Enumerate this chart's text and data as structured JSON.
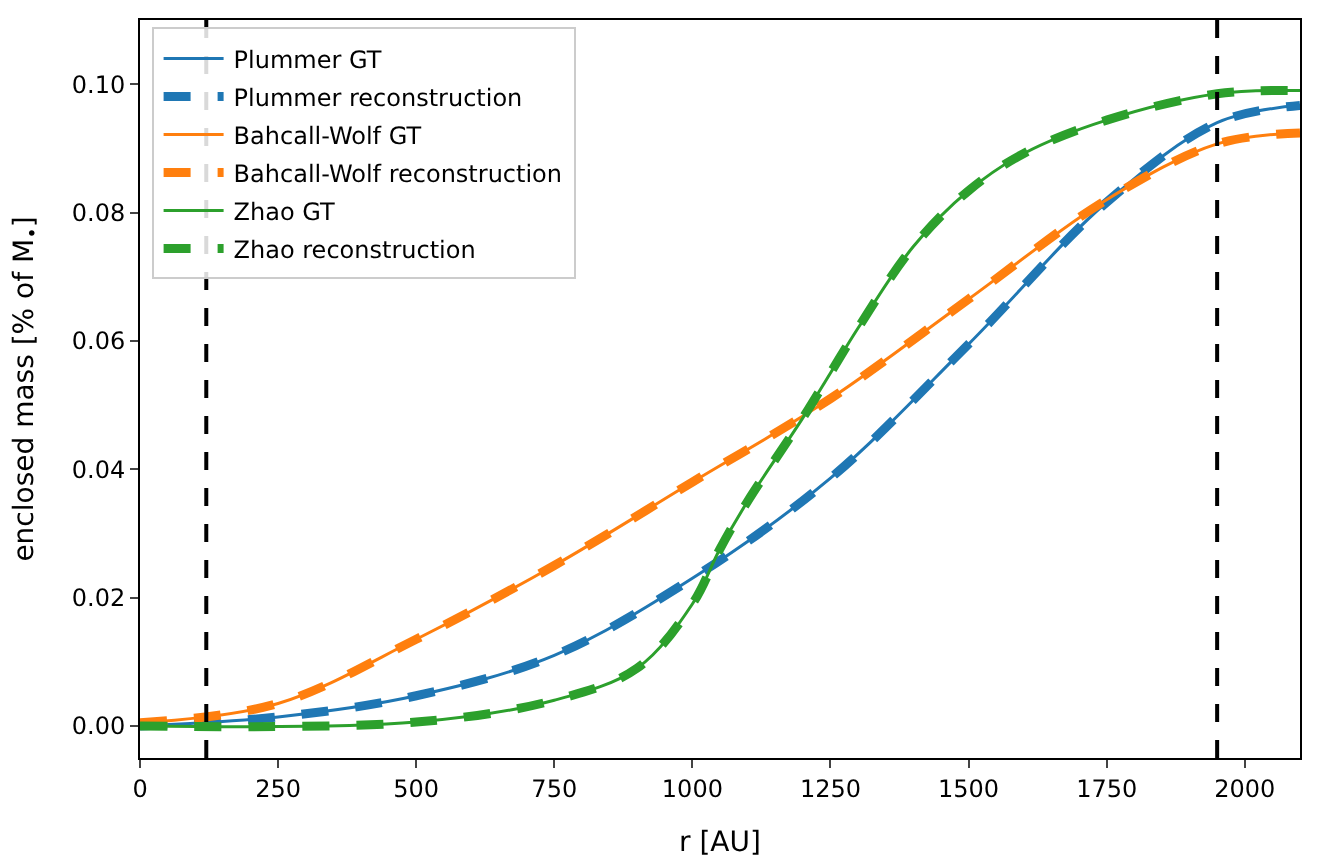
{
  "chart_data": {
    "type": "line",
    "xlabel": "r [AU]",
    "ylabel": "enclosed mass [% of M$_{•}$]",
    "xlim": [
      0,
      2100
    ],
    "ylim": [
      -0.005,
      0.11
    ],
    "xticks": [
      0,
      250,
      500,
      750,
      1000,
      1250,
      1500,
      1750,
      2000
    ],
    "yticks": [
      {
        "value": 0,
        "label": "0.00"
      },
      {
        "value": 0.02,
        "label": "0.02"
      },
      {
        "value": 0.04,
        "label": "0.04"
      },
      {
        "value": 0.06,
        "label": "0.06"
      },
      {
        "value": 0.08,
        "label": "0.08"
      },
      {
        "value": 0.1,
        "label": "0.10"
      }
    ],
    "grid": false,
    "legend": "top left",
    "marker": "none",
    "series": [
      {
        "name": "Plummer GT",
        "color": "#1f77b4",
        "line_style": "solid",
        "x": [
          0,
          250,
          500,
          750,
          1000,
          1250,
          1500,
          1750,
          1950,
          2100
        ],
        "values": [
          0,
          0.0014,
          0.0047,
          0.011,
          0.023,
          0.0386,
          0.0595,
          0.0816,
          0.094,
          0.0967
        ]
      },
      {
        "name": "Plummer reconstruction",
        "color": "#1f77b4",
        "line_style": "dashed",
        "x": [
          0,
          250,
          500,
          750,
          1000,
          1250,
          1500,
          1750,
          1950,
          2100
        ],
        "values": [
          0,
          0.0014,
          0.0047,
          0.011,
          0.023,
          0.0386,
          0.0595,
          0.0816,
          0.094,
          0.0967
        ]
      },
      {
        "name": "Bahcall-Wolf GT",
        "color": "#ff7f0e",
        "line_style": "solid",
        "x": [
          0,
          250,
          500,
          750,
          1000,
          1250,
          1500,
          1750,
          1950,
          2100
        ],
        "values": [
          0.0005,
          0.0035,
          0.0135,
          0.025,
          0.038,
          0.051,
          0.0665,
          0.082,
          0.0907,
          0.0924
        ]
      },
      {
        "name": "Bahcall-Wolf reconstruction",
        "color": "#ff7f0e",
        "line_style": "dashed",
        "x": [
          0,
          250,
          500,
          750,
          1000,
          1250,
          1500,
          1750,
          1950,
          2100
        ],
        "values": [
          0.0005,
          0.0035,
          0.0135,
          0.025,
          0.038,
          0.051,
          0.0665,
          0.082,
          0.0907,
          0.0924
        ]
      },
      {
        "name": "Zhao GT",
        "color": "#2ca02c",
        "line_style": "solid",
        "x": [
          0,
          500,
          750,
          900,
          1000,
          1050,
          1100,
          1200,
          1250,
          1300,
          1400,
          1500,
          1600,
          1750,
          1950,
          2100
        ],
        "values": [
          0,
          0.0006,
          0.004,
          0.009,
          0.019,
          0.0276,
          0.035,
          0.048,
          0.055,
          0.062,
          0.0747,
          0.0834,
          0.0892,
          0.0944,
          0.0985,
          0.099
        ]
      },
      {
        "name": "Zhao reconstruction",
        "color": "#2ca02c",
        "line_style": "dashed",
        "x": [
          0,
          500,
          750,
          900,
          1000,
          1050,
          1100,
          1200,
          1250,
          1300,
          1400,
          1500,
          1600,
          1750,
          1950,
          2100
        ],
        "values": [
          0,
          0.0006,
          0.004,
          0.009,
          0.019,
          0.0276,
          0.035,
          0.048,
          0.055,
          0.062,
          0.0747,
          0.0834,
          0.0892,
          0.0944,
          0.0985,
          0.099
        ]
      }
    ],
    "ref_lines": [
      {
        "axis": "x",
        "value": 120,
        "color": "#000000",
        "line_style": "dashed"
      },
      {
        "axis": "x",
        "value": 1950,
        "color": "#000000",
        "line_style": "dashed"
      }
    ]
  }
}
